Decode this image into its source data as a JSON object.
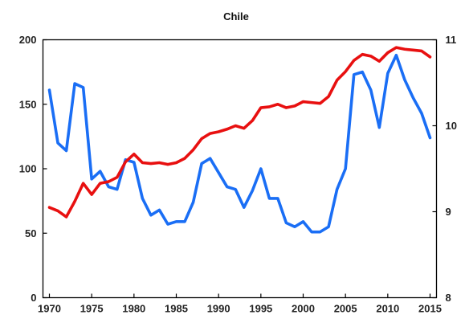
{
  "chart_data": {
    "type": "line",
    "title": "Chile",
    "xlabel": "",
    "ylabel": "",
    "xlim": [
      1970,
      2015
    ],
    "ylim_left": [
      0,
      200
    ],
    "ylim_right": [
      8,
      11
    ],
    "x_ticks": [
      "1970",
      "1975",
      "1980",
      "1985",
      "1990",
      "1995",
      "2000",
      "2005",
      "2010",
      "2015"
    ],
    "y_ticks_left": [
      "0",
      "50",
      "100",
      "150",
      "200"
    ],
    "y_ticks_right": [
      "8",
      "9",
      "10",
      "11"
    ],
    "grid": false,
    "legend": "none",
    "x": [
      1970,
      1971,
      1972,
      1973,
      1974,
      1975,
      1976,
      1977,
      1978,
      1979,
      1980,
      1981,
      1982,
      1983,
      1984,
      1985,
      1986,
      1987,
      1988,
      1989,
      1990,
      1991,
      1992,
      1993,
      1994,
      1995,
      1996,
      1997,
      1998,
      1999,
      2000,
      2001,
      2002,
      2003,
      2004,
      2005,
      2006,
      2007,
      2008,
      2009,
      2010,
      2011,
      2012,
      2013,
      2014,
      2015
    ],
    "series": [
      {
        "axis": "left",
        "color": "#1a6ef5",
        "values": [
          161,
          120,
          114,
          166,
          163,
          92,
          98,
          86,
          84,
          107,
          105,
          77,
          64,
          68,
          57,
          59,
          59,
          74,
          104,
          108,
          97,
          86,
          84,
          70,
          83,
          100,
          77,
          77,
          58,
          55,
          59,
          51,
          51,
          55,
          84,
          100,
          173,
          175,
          161,
          132,
          174,
          188,
          169,
          155,
          143,
          124
        ]
      },
      {
        "axis": "right",
        "color": "#e81010",
        "values": [
          9.05,
          9.01,
          8.94,
          9.12,
          9.33,
          9.2,
          9.33,
          9.35,
          9.4,
          9.58,
          9.67,
          9.57,
          9.56,
          9.57,
          9.55,
          9.57,
          9.62,
          9.72,
          9.85,
          9.91,
          9.93,
          9.96,
          10.0,
          9.97,
          10.06,
          10.21,
          10.22,
          10.25,
          10.21,
          10.23,
          10.28,
          10.27,
          10.26,
          10.34,
          10.53,
          10.63,
          10.76,
          10.83,
          10.81,
          10.75,
          10.85,
          10.91,
          10.89,
          10.88,
          10.87,
          10.8
        ]
      }
    ]
  }
}
